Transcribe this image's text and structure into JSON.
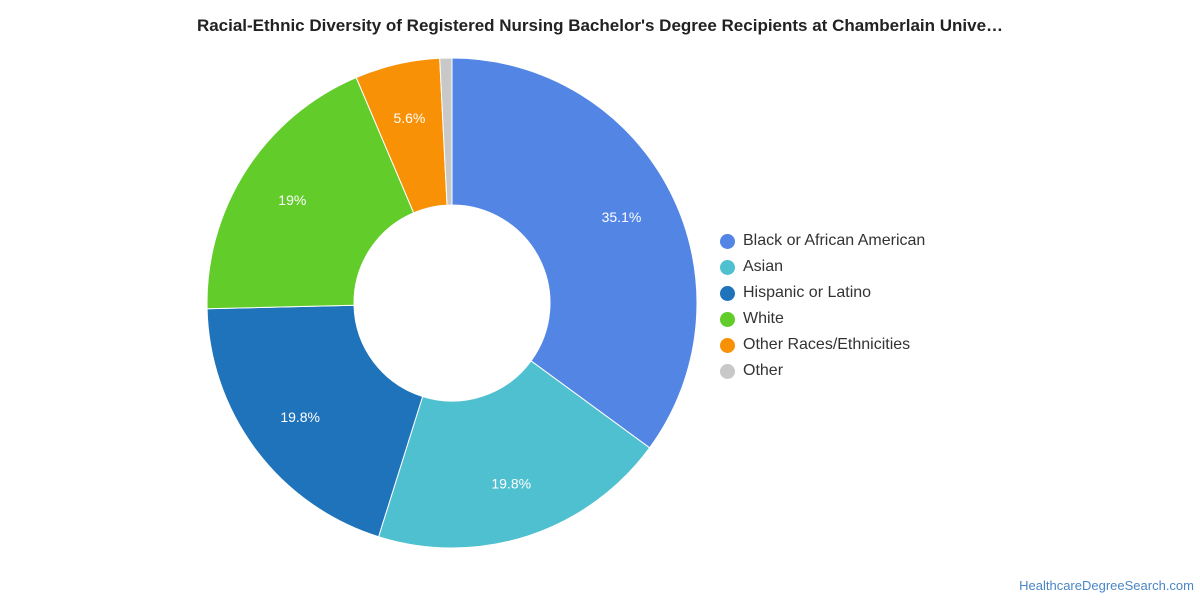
{
  "chart_data": {
    "type": "pie",
    "title": "Racial-Ethnic Diversity of Registered Nursing Bachelor's Degree Recipients at Chamberlain Unive…",
    "donut": true,
    "legend_position": "right",
    "slices": [
      {
        "label": "Black or African American",
        "value": 35.1,
        "display": "35.1%",
        "color": "#5385e4"
      },
      {
        "label": "Asian",
        "value": 19.8,
        "display": "19.8%",
        "color": "#4fc0cf"
      },
      {
        "label": "Hispanic or Latino",
        "value": 19.8,
        "display": "19.8%",
        "color": "#1f73ba"
      },
      {
        "label": "White",
        "value": 19.0,
        "display": "19%",
        "color": "#62cc2a"
      },
      {
        "label": "Other Races/Ethnicities",
        "value": 5.6,
        "display": "5.6%",
        "color": "#f89106"
      },
      {
        "label": "Other",
        "value": 0.8,
        "display": "",
        "color": "#c8c8c8"
      }
    ]
  },
  "source": "HealthcareDegreeSearch.com"
}
